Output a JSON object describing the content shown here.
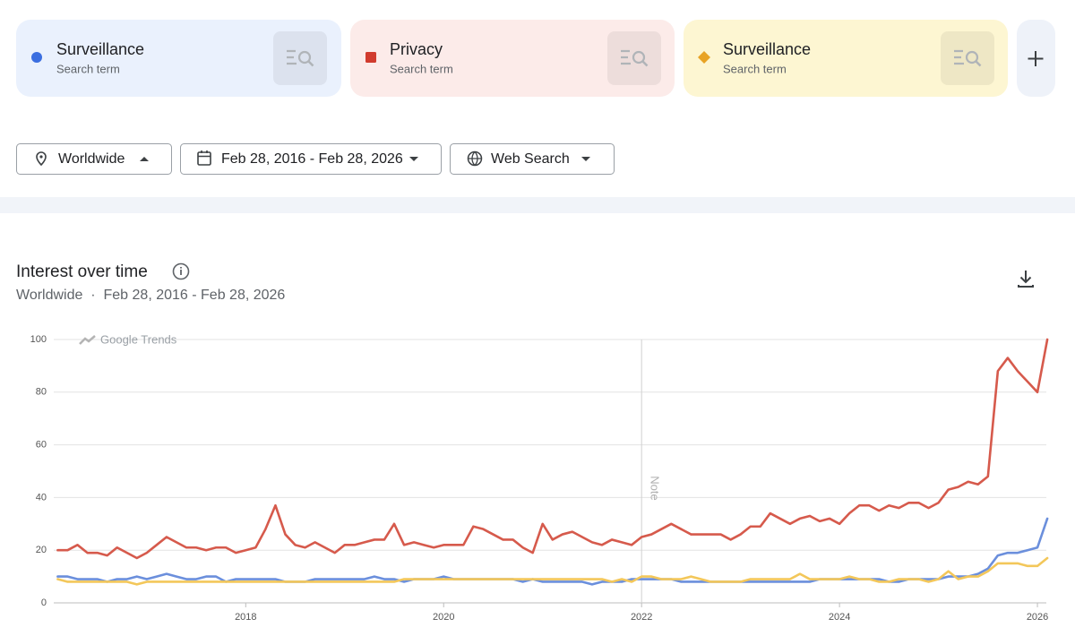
{
  "search_terms": [
    "Search term",
    "Search term",
    "Search term"
  ],
  "filters": {
    "location": "Worldwide",
    "date_range": "Feb 28, 2016 - Feb 28, 2026",
    "property": "Web Search"
  },
  "chart_data": {
    "type": "line",
    "title": "Interest over time",
    "subtitle": "Worldwide  ·  Feb 28, 2016 - Feb 28, 2026",
    "watermark": "Google Trends",
    "annotations": [
      {
        "x": 2022.0,
        "text": "Note"
      }
    ],
    "xlim": [
      2016.06,
      2026.09
    ],
    "xticks": [
      2018,
      2020,
      2022,
      2024,
      2026
    ],
    "ylim": [
      0,
      100
    ],
    "yticks": [
      0,
      20,
      40,
      60,
      80,
      100
    ],
    "grid": true,
    "x": [
      2016.1,
      2016.2,
      2016.3,
      2016.4,
      2016.5,
      2016.6,
      2016.7,
      2016.8,
      2016.9,
      2017.0,
      2017.1,
      2017.2,
      2017.3,
      2017.4,
      2017.5,
      2017.6,
      2017.7,
      2017.8,
      2017.9,
      2018.0,
      2018.1,
      2018.2,
      2018.3,
      2018.4,
      2018.5,
      2018.6,
      2018.7,
      2018.8,
      2018.9,
      2019.0,
      2019.1,
      2019.2,
      2019.3,
      2019.4,
      2019.5,
      2019.6,
      2019.7,
      2019.8,
      2019.9,
      2020.0,
      2020.1,
      2020.2,
      2020.3,
      2020.4,
      2020.5,
      2020.6,
      2020.7,
      2020.8,
      2020.9,
      2021.0,
      2021.1,
      2021.2,
      2021.3,
      2021.4,
      2021.5,
      2021.6,
      2021.7,
      2021.8,
      2021.9,
      2022.0,
      2022.1,
      2022.2,
      2022.3,
      2022.4,
      2022.5,
      2022.6,
      2022.7,
      2022.8,
      2022.9,
      2023.0,
      2023.1,
      2023.2,
      2023.3,
      2023.4,
      2023.5,
      2023.6,
      2023.7,
      2023.8,
      2023.9,
      2024.0,
      2024.1,
      2024.2,
      2024.3,
      2024.4,
      2024.5,
      2024.6,
      2024.7,
      2024.8,
      2024.9,
      2025.0,
      2025.1,
      2025.2,
      2025.3,
      2025.4,
      2025.5,
      2025.6,
      2025.7,
      2025.8,
      2025.9,
      2026.0,
      2026.1
    ],
    "series": [
      {
        "name": "Surveillance",
        "color": "#6b8fdc",
        "marker": "circle",
        "icon_color": "#3b6ee0",
        "values": [
          10,
          10,
          9,
          9,
          9,
          8,
          9,
          9,
          10,
          9,
          10,
          11,
          10,
          9,
          9,
          10,
          10,
          8,
          9,
          9,
          9,
          9,
          9,
          8,
          8,
          8,
          9,
          9,
          9,
          9,
          9,
          9,
          10,
          9,
          9,
          8,
          9,
          9,
          9,
          10,
          9,
          9,
          9,
          9,
          9,
          9,
          9,
          8,
          9,
          8,
          8,
          8,
          8,
          8,
          7,
          8,
          8,
          8,
          9,
          9,
          9,
          9,
          9,
          8,
          8,
          8,
          8,
          8,
          8,
          8,
          8,
          8,
          8,
          8,
          8,
          8,
          8,
          9,
          9,
          9,
          9,
          9,
          9,
          9,
          8,
          8,
          9,
          9,
          9,
          9,
          10,
          10,
          10,
          11,
          13,
          18,
          19,
          19,
          20,
          21,
          32
        ]
      },
      {
        "name": "Privacy",
        "color": "#d65a4c",
        "marker": "square",
        "icon_color": "#d13b2e",
        "values": [
          20,
          20,
          22,
          19,
          19,
          18,
          21,
          19,
          17,
          19,
          22,
          25,
          23,
          21,
          21,
          20,
          21,
          21,
          19,
          20,
          21,
          28,
          37,
          26,
          22,
          21,
          23,
          21,
          19,
          22,
          22,
          23,
          24,
          24,
          30,
          22,
          23,
          22,
          21,
          22,
          22,
          22,
          29,
          28,
          26,
          24,
          24,
          21,
          19,
          30,
          24,
          26,
          27,
          25,
          23,
          22,
          24,
          23,
          22,
          25,
          26,
          28,
          30,
          28,
          26,
          26,
          26,
          26,
          24,
          26,
          29,
          29,
          34,
          32,
          30,
          32,
          33,
          31,
          32,
          30,
          34,
          37,
          37,
          35,
          37,
          36,
          38,
          38,
          36,
          38,
          43,
          44,
          46,
          45,
          48,
          88,
          93,
          88,
          84,
          80,
          100
        ]
      },
      {
        "name": "Surveillance",
        "color": "#f3c75a",
        "marker": "diamond",
        "icon_color": "#e8a325",
        "values": [
          9,
          8,
          8,
          8,
          8,
          8,
          8,
          8,
          7,
          8,
          8,
          8,
          8,
          8,
          8,
          8,
          8,
          8,
          8,
          8,
          8,
          8,
          8,
          8,
          8,
          8,
          8,
          8,
          8,
          8,
          8,
          8,
          8,
          8,
          8,
          9,
          9,
          9,
          9,
          9,
          9,
          9,
          9,
          9,
          9,
          9,
          9,
          9,
          9,
          9,
          9,
          9,
          9,
          9,
          9,
          9,
          8,
          9,
          8,
          10,
          10,
          9,
          9,
          9,
          10,
          9,
          8,
          8,
          8,
          8,
          9,
          9,
          9,
          9,
          9,
          11,
          9,
          9,
          9,
          9,
          10,
          9,
          9,
          8,
          8,
          9,
          9,
          9,
          8,
          9,
          12,
          9,
          10,
          10,
          12,
          15,
          15,
          15,
          14,
          14,
          17
        ]
      }
    ]
  }
}
